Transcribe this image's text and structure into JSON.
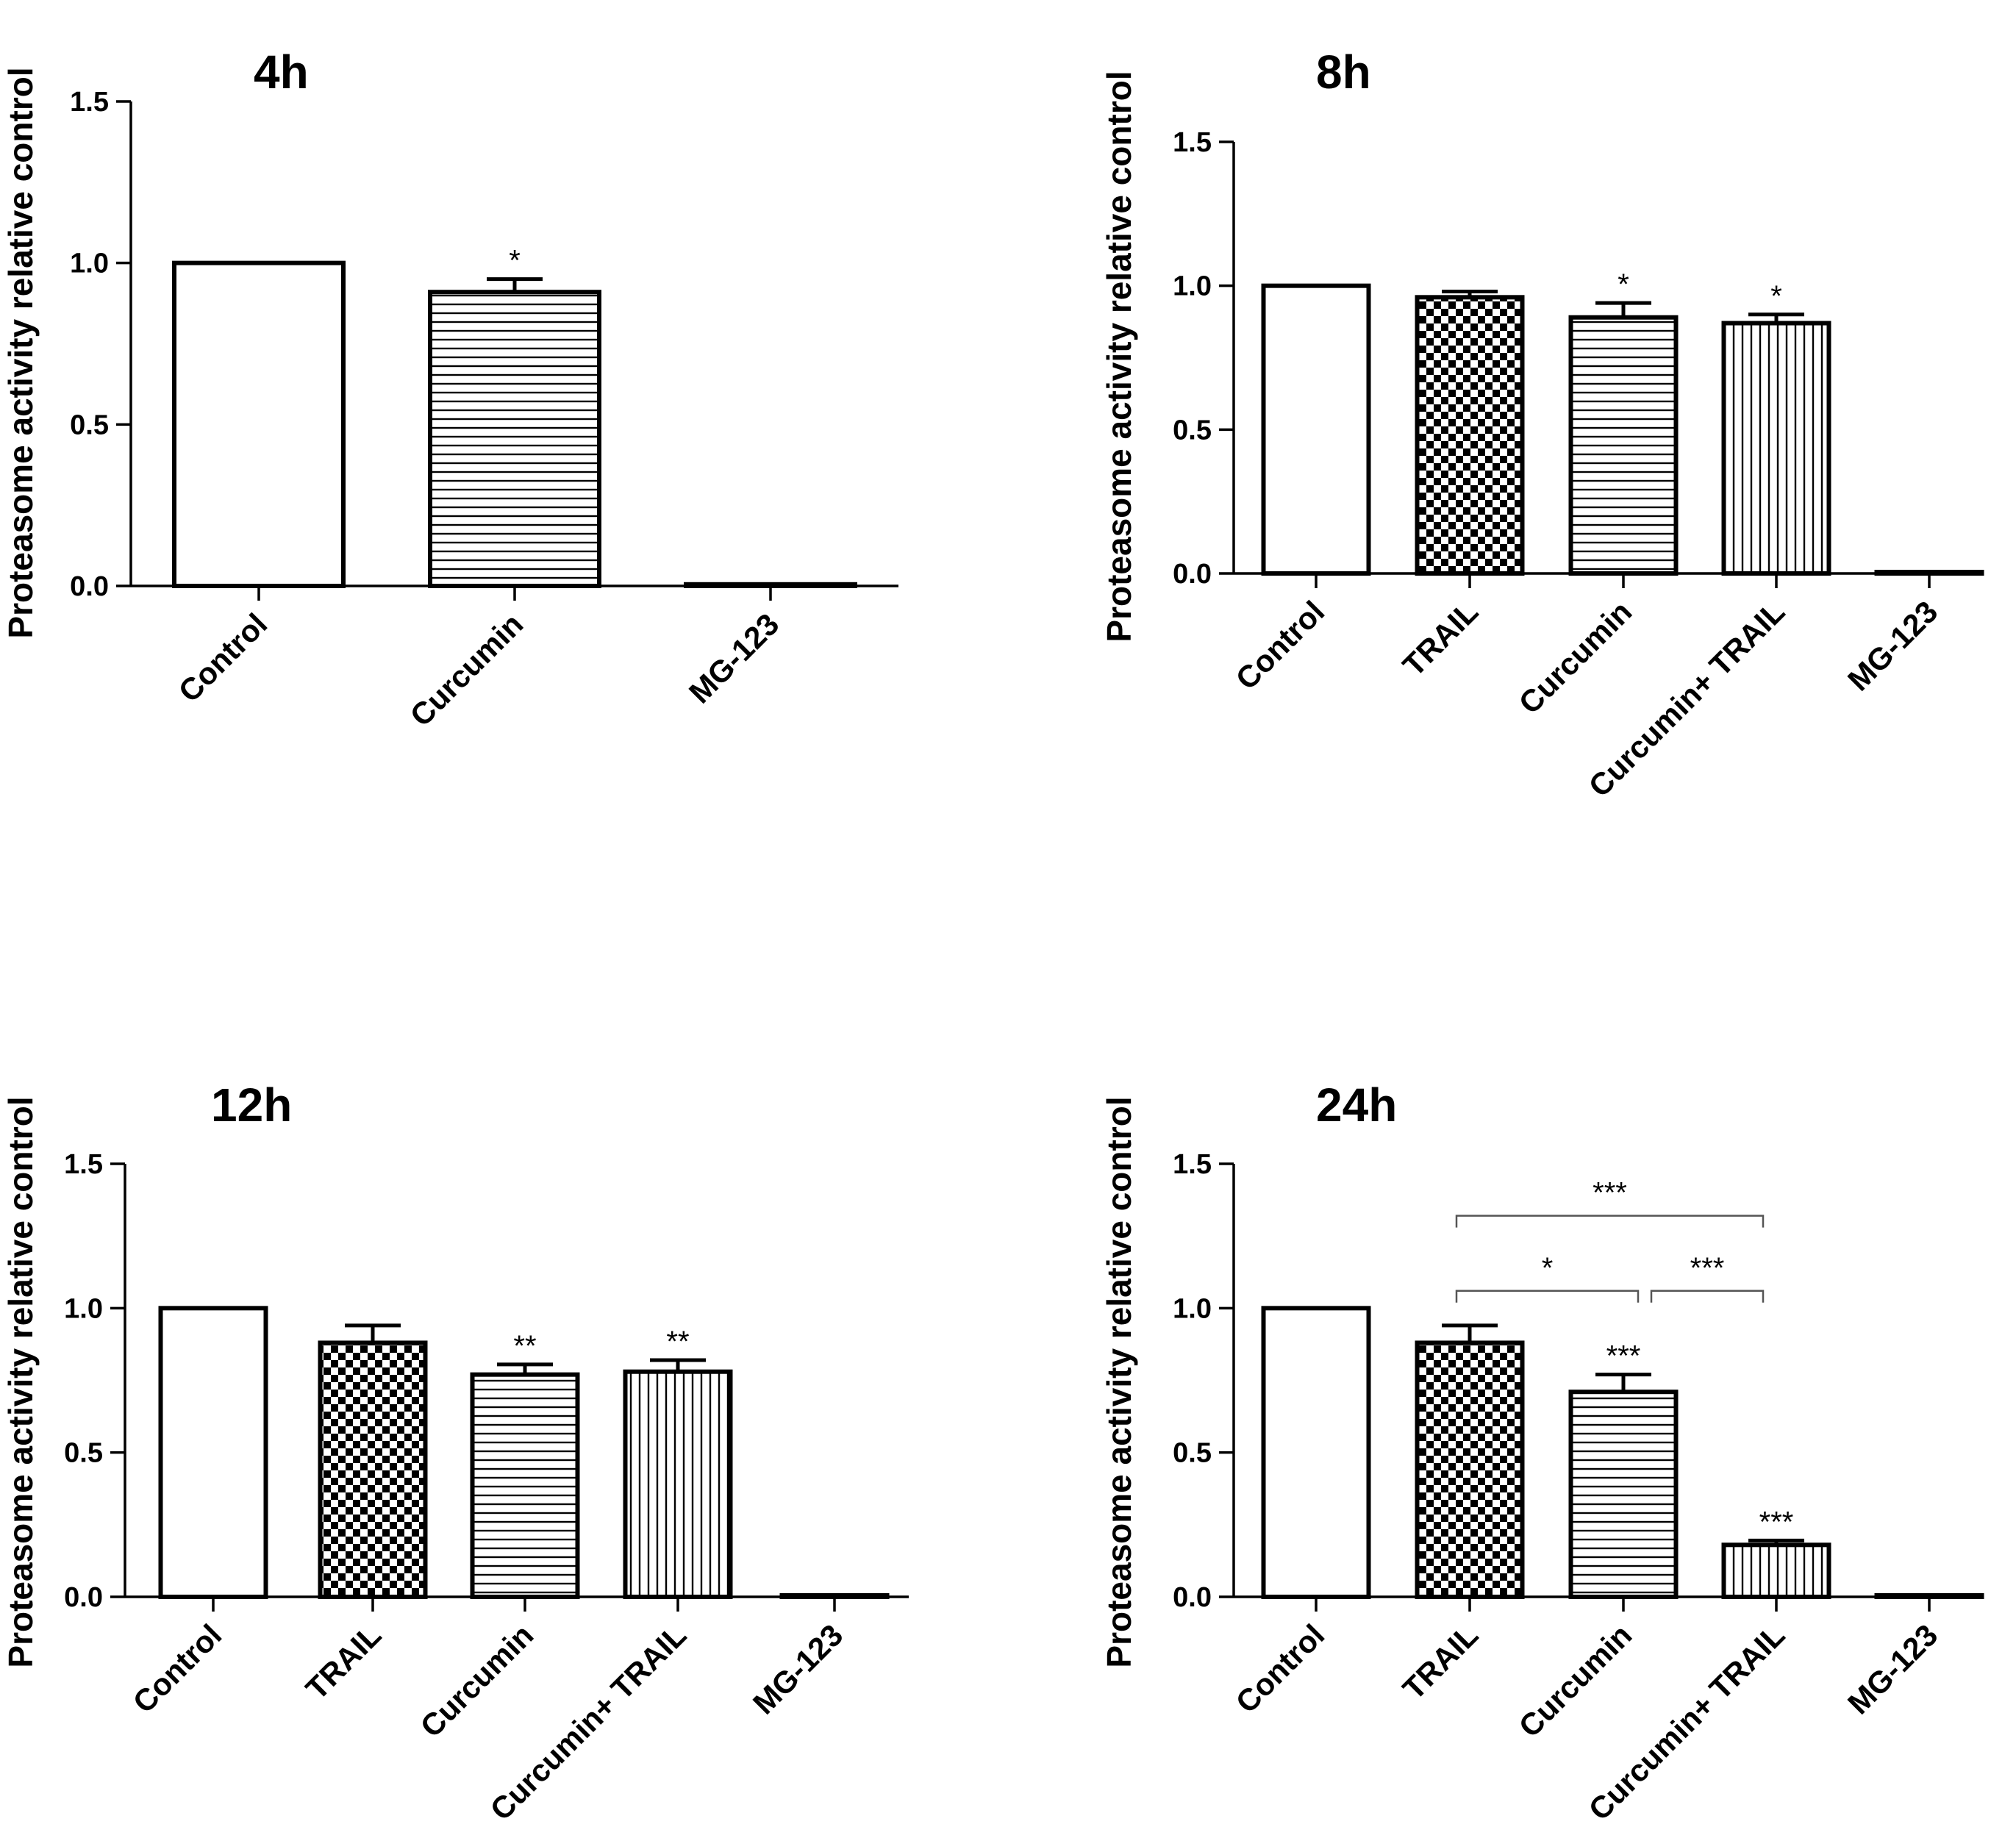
{
  "figure": {
    "ylabel": "Proteasome activity relative control"
  },
  "chart_data": [
    {
      "type": "bar",
      "title": "4h",
      "ylabel": "Proteasome activity relative control",
      "ylim": [
        0,
        1.5
      ],
      "yticks": [
        "0.0",
        "0.5",
        "1.0",
        "1.5"
      ],
      "categories": [
        "Control",
        "Curcumin",
        "MG-123"
      ],
      "values": [
        1.0,
        0.91,
        0.005
      ],
      "errors": [
        0,
        0.04,
        0
      ],
      "patterns": [
        "none",
        "hlines",
        "none"
      ],
      "significance": [
        "",
        "*",
        ""
      ],
      "brackets": []
    },
    {
      "type": "bar",
      "title": "8h",
      "ylabel": "Proteasome activity relative control",
      "ylim": [
        0,
        1.5
      ],
      "yticks": [
        "0.0",
        "0.5",
        "1.0",
        "1.5"
      ],
      "categories": [
        "Control",
        "TRAIL",
        "Curcumin",
        "Curcumin+ TRAIL",
        "MG-123"
      ],
      "values": [
        1.0,
        0.96,
        0.89,
        0.87,
        0.005
      ],
      "errors": [
        0,
        0.02,
        0.05,
        0.03,
        0
      ],
      "patterns": [
        "none",
        "checker",
        "hlines",
        "vlines",
        "none"
      ],
      "significance": [
        "",
        "",
        "*",
        "*",
        ""
      ],
      "brackets": []
    },
    {
      "type": "bar",
      "title": "12h",
      "ylabel": "Proteasome activity relative control",
      "ylim": [
        0,
        1.5
      ],
      "yticks": [
        "0.0",
        "0.5",
        "1.0",
        "1.5"
      ],
      "categories": [
        "Control",
        "TRAIL",
        "Curcumin",
        "Curcumin+ TRAIL",
        "MG-123"
      ],
      "values": [
        1.0,
        0.88,
        0.77,
        0.78,
        0.005
      ],
      "errors": [
        0,
        0.06,
        0.035,
        0.04,
        0
      ],
      "patterns": [
        "none",
        "checker",
        "hlines",
        "vlines",
        "none"
      ],
      "significance": [
        "",
        "",
        "**",
        "**",
        ""
      ],
      "brackets": []
    },
    {
      "type": "bar",
      "title": "24h",
      "ylabel": "Proteasome activity relative control",
      "ylim": [
        0,
        1.5
      ],
      "yticks": [
        "0.0",
        "0.5",
        "1.0",
        "1.5"
      ],
      "categories": [
        "Control",
        "TRAIL",
        "Curcumin",
        "Curcumin+ TRAIL",
        "MG-123"
      ],
      "values": [
        1.0,
        0.88,
        0.71,
        0.18,
        0.005
      ],
      "errors": [
        0,
        0.06,
        0.06,
        0.015,
        0
      ],
      "patterns": [
        "none",
        "checker",
        "hlines",
        "vlines",
        "none"
      ],
      "significance": [
        "",
        "",
        "***",
        "***",
        ""
      ],
      "brackets": [
        {
          "from": 1,
          "to": 3,
          "label": "***",
          "level": 1.32
        },
        {
          "from": 1,
          "to": 2,
          "label": "*",
          "level": 1.06
        },
        {
          "from": 2,
          "to": 3,
          "label": "***",
          "level": 1.06
        }
      ]
    }
  ]
}
